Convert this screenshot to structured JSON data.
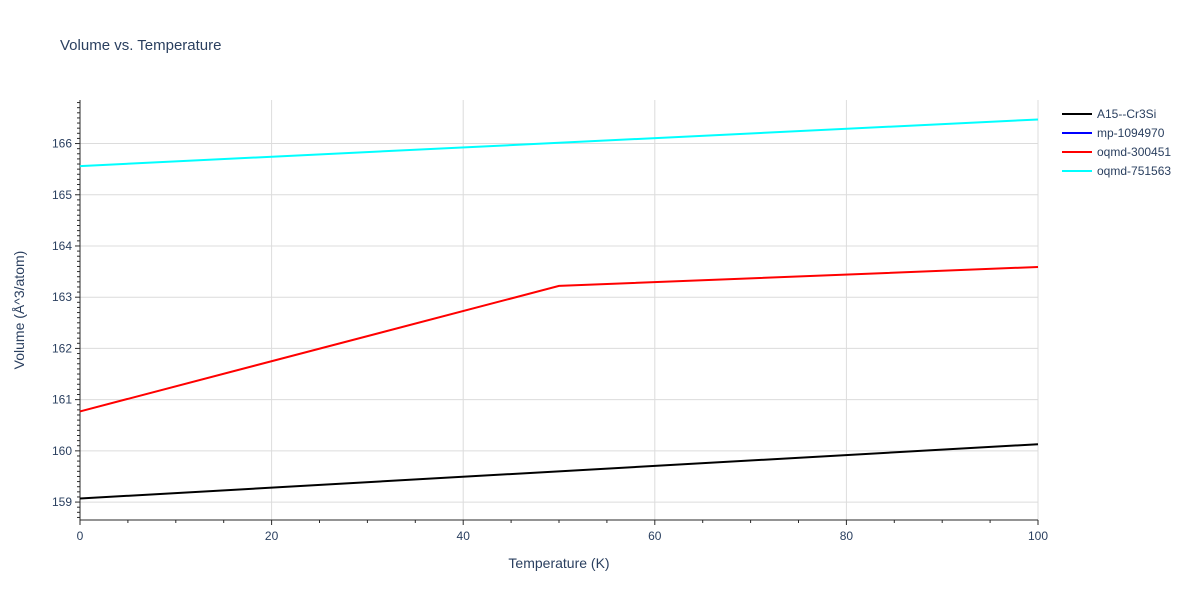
{
  "chart_data": {
    "type": "line",
    "title": "Volume vs. Temperature",
    "xlabel": "Temperature (K)",
    "ylabel": "Volume (Å^3/atom)",
    "xlim": [
      0,
      100
    ],
    "ylim": [
      158.65,
      166.85
    ],
    "x_ticks": [
      0,
      20,
      40,
      60,
      80,
      100
    ],
    "y_ticks": [
      159,
      160,
      161,
      162,
      163,
      164,
      165,
      166
    ],
    "grid": true,
    "legend_position": "top-right",
    "series": [
      {
        "name": "A15--Cr3Si",
        "color": "#000000",
        "x": [
          0,
          100
        ],
        "y": [
          159.07,
          160.13
        ]
      },
      {
        "name": "mp-1094970",
        "color": "#0000ff",
        "x": [],
        "y": []
      },
      {
        "name": "oqmd-300451",
        "color": "#ff0000",
        "x": [
          0,
          50,
          100
        ],
        "y": [
          160.77,
          163.22,
          163.59
        ]
      },
      {
        "name": "oqmd-751563",
        "color": "#00ffff",
        "x": [
          0,
          100
        ],
        "y": [
          165.56,
          166.47
        ]
      }
    ]
  }
}
